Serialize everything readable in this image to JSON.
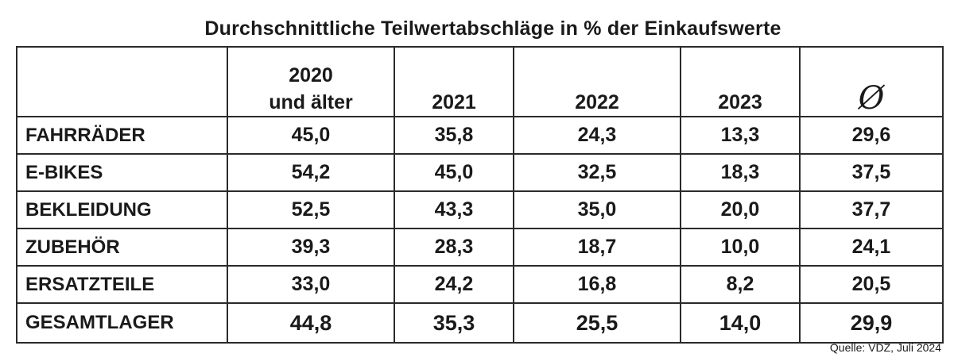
{
  "chart_data": {
    "type": "table",
    "title": "Durchschnittliche Teilwertabschläge in % der Einkaufswerte",
    "columns": [
      "",
      "2020 und älter",
      "2021",
      "2022",
      "2023",
      "Ø"
    ],
    "column_header_lines": [
      [
        "2020",
        "und älter"
      ]
    ],
    "rows": [
      {
        "label": "FAHRRÄDER",
        "values": [
          "45,0",
          "35,8",
          "24,3",
          "13,3",
          "29,6"
        ]
      },
      {
        "label": "E-BIKES",
        "values": [
          "54,2",
          "45,0",
          "32,5",
          "18,3",
          "37,5"
        ]
      },
      {
        "label": "BEKLEIDUNG",
        "values": [
          "52,5",
          "43,3",
          "35,0",
          "20,0",
          "37,7"
        ]
      },
      {
        "label": "ZUBEHÖR",
        "values": [
          "39,3",
          "28,3",
          "18,7",
          "10,0",
          "24,1"
        ]
      },
      {
        "label": "ERSATZTEILE",
        "values": [
          "33,0",
          "24,2",
          "16,8",
          "8,2",
          "20,5"
        ]
      },
      {
        "label": "GESAMTLAGER",
        "values": [
          "44,8",
          "35,3",
          "25,5",
          "14,0",
          "29,9"
        ]
      }
    ],
    "source": "Quelle: VDZ, Juli 2024"
  }
}
